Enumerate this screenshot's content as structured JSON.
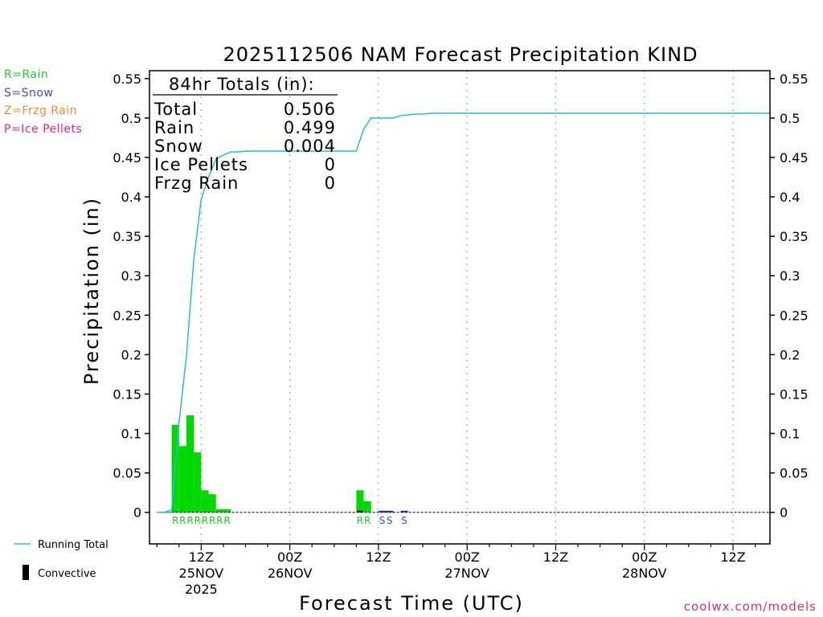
{
  "chart_data": {
    "type": "bar",
    "title": "2025112506 NAM Forecast Precipitation KIND",
    "xlabel": "Forecast Time (UTC)",
    "ylabel": "Precipitation (in)",
    "ylim": [
      -0.04,
      0.56
    ],
    "yticks": [
      0,
      0.05,
      0.1,
      0.15,
      0.2,
      0.25,
      0.3,
      0.35,
      0.4,
      0.45,
      0.5,
      0.55
    ],
    "ytick_labels": [
      "0",
      "0.05",
      "0.1",
      "0.15",
      "0.2",
      "0.25",
      "0.3",
      "0.35",
      "0.4",
      "0.45",
      "0.5",
      "0.55"
    ],
    "xlim_hours": [
      5,
      89
    ],
    "xticks": [
      {
        "hour": 12,
        "label": "12Z",
        "date": "25NOV",
        "year": "2025"
      },
      {
        "hour": 24,
        "label": "00Z",
        "date": "26NOV",
        "year": ""
      },
      {
        "hour": 36,
        "label": "12Z",
        "date": "",
        "year": ""
      },
      {
        "hour": 48,
        "label": "00Z",
        "date": "27NOV",
        "year": ""
      },
      {
        "hour": 60,
        "label": "12Z",
        "date": "",
        "year": ""
      },
      {
        "hour": 72,
        "label": "00Z",
        "date": "28NOV",
        "year": ""
      },
      {
        "hour": 84,
        "label": "12Z",
        "date": "",
        "year": ""
      }
    ],
    "hourly_bars": {
      "hours": [
        9,
        10,
        11,
        12,
        13,
        14,
        15,
        16,
        34,
        35
      ],
      "values": [
        0.111,
        0.084,
        0.123,
        0.076,
        0.028,
        0.023,
        0.004,
        0.004,
        0.028,
        0.014
      ],
      "type_labels": [
        "R",
        "R",
        "R",
        "R",
        "R",
        "R",
        "R",
        "R",
        "R",
        "R"
      ]
    },
    "snow_marks": {
      "hours": [
        37,
        38,
        40
      ],
      "values": [
        0.001,
        0.001,
        0.0005
      ],
      "type_labels": [
        "S",
        "S",
        "S"
      ]
    },
    "convective": {
      "hours": [
        34
      ],
      "values": [
        0.002
      ]
    },
    "running_total": {
      "name": "Running Total",
      "hours": [
        6,
        7,
        8,
        9,
        10,
        11,
        12,
        13,
        14,
        15,
        16,
        17,
        18,
        19,
        20,
        21,
        22,
        23,
        24,
        25,
        26,
        27,
        28,
        29,
        30,
        31,
        32,
        33,
        34,
        35,
        36,
        37,
        38,
        39,
        40,
        41,
        42,
        43,
        44,
        45,
        46,
        47,
        48,
        89
      ],
      "values": [
        0,
        0,
        0.003,
        0.114,
        0.198,
        0.321,
        0.397,
        0.425,
        0.448,
        0.453,
        0.457,
        0.457,
        0.458,
        0.458,
        0.458,
        0.458,
        0.458,
        0.458,
        0.458,
        0.458,
        0.458,
        0.458,
        0.458,
        0.458,
        0.458,
        0.458,
        0.458,
        0.458,
        0.486,
        0.5,
        0.5,
        0.5,
        0.5,
        0.503,
        0.504,
        0.505,
        0.505,
        0.506,
        0.506,
        0.506,
        0.506,
        0.506,
        0.506,
        0.506
      ],
      "color": "#20c0d0"
    },
    "totals_box": {
      "heading": "84hr Totals (in):",
      "rows": [
        {
          "label": "Total",
          "value": "0.506"
        },
        {
          "label": "Rain",
          "value": "0.499"
        },
        {
          "label": "Snow",
          "value": "0.004"
        },
        {
          "label": "Ice Pellets",
          "value": "0"
        },
        {
          "label": "Frzg Rain",
          "value": "0"
        }
      ]
    },
    "type_legend": [
      {
        "text": "R=Rain",
        "color": "#20d020"
      },
      {
        "text": "S=Snow",
        "color": "#3050e0"
      },
      {
        "text": "Z=Frzg Rain",
        "color": "#f08c30"
      },
      {
        "text": "P=Ice Pellets",
        "color": "#f02090"
      }
    ],
    "series_legend": [
      {
        "text": "Running Total",
        "color": "#20c0d0"
      },
      {
        "text": "Convective",
        "color": "#000000"
      }
    ],
    "colors": {
      "rain": "#00d800",
      "rain_label": "#20d020",
      "snow": "#2030c0",
      "snow_label": "#3050e0",
      "convective": "#000000"
    },
    "grid": "vertical dotted"
  },
  "credit": "coolwx.com/models"
}
